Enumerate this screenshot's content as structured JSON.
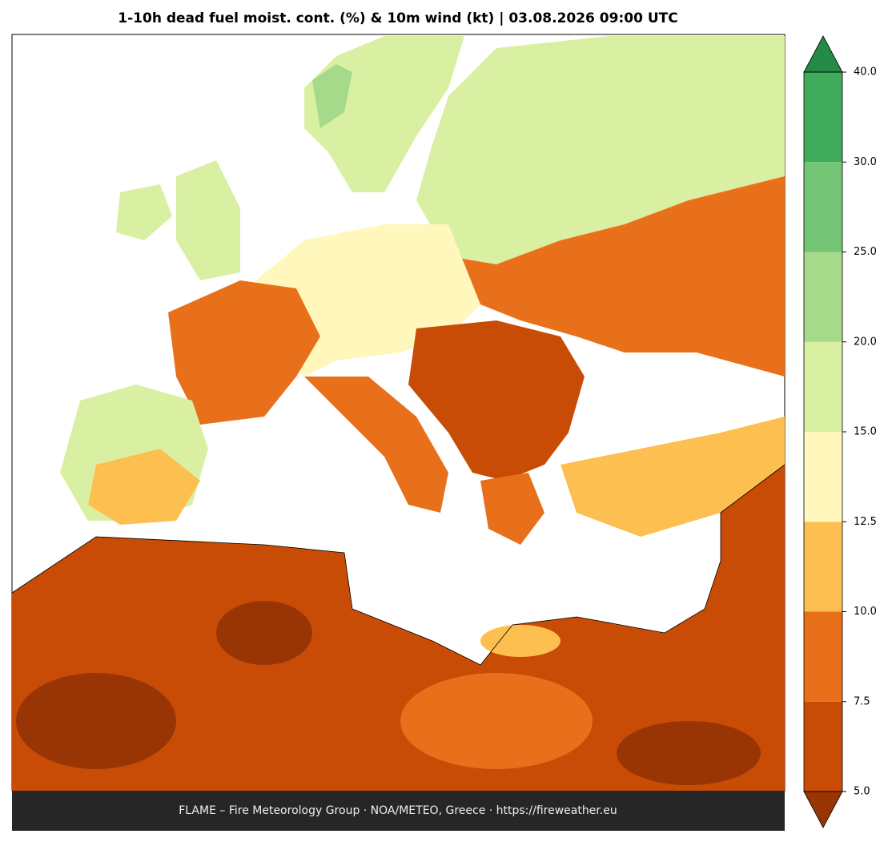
{
  "map": {
    "title": "1-10h dead fuel moist. cont. (%) & 10m wind (kt)  |  03.08.2026 09:00 UTC",
    "footer": "FLAME – Fire Meteorology Group · NOA/METEO, Greece · https://fireweather.eu",
    "colorbar": {
      "ticks": [
        {
          "value": 5,
          "label": "5.0"
        },
        {
          "value": 7.5,
          "label": "7.5"
        },
        {
          "value": 10,
          "label": "10.0"
        },
        {
          "value": 12.5,
          "label": "12.5"
        },
        {
          "value": 15,
          "label": "15.0"
        },
        {
          "value": 20,
          "label": "20.0"
        },
        {
          "value": 25,
          "label": "25.0"
        },
        {
          "value": 30,
          "label": "30.0"
        },
        {
          "value": 40,
          "label": "40.0"
        }
      ],
      "colors": [
        "#c84c06",
        "#e8701a",
        "#fdbf4f",
        "#fff7bc",
        "#d9f0a3",
        "#a6d98a",
        "#74c476",
        "#41ab5d"
      ],
      "under_color": "#993404",
      "over_color": "#238b45"
    }
  }
}
